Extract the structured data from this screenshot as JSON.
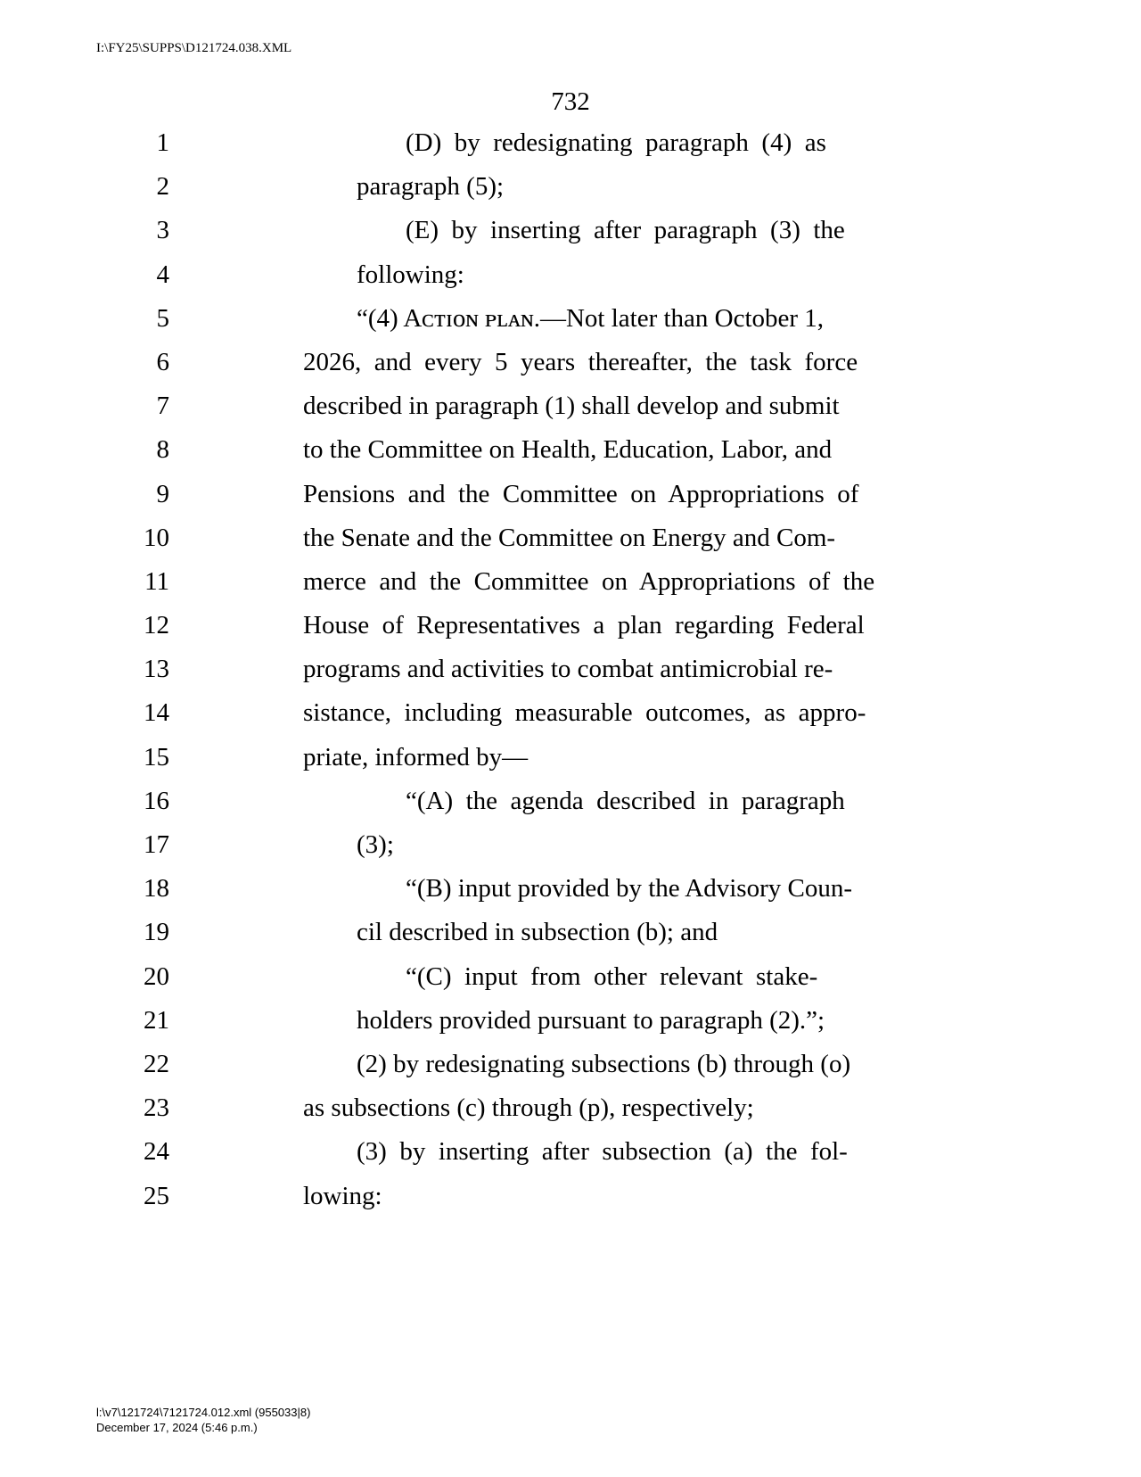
{
  "header_path": "I:\\FY25\\SUPPS\\D121724.038.XML",
  "page_number": "732",
  "lines": [
    {
      "n": "1",
      "indent": 230,
      "text": "(D)  by  redesignating  paragraph  (4)  as"
    },
    {
      "n": "2",
      "indent": 175,
      "text": "paragraph (5);"
    },
    {
      "n": "3",
      "indent": 230,
      "text": "(E)  by  inserting  after  paragraph  (3)  the"
    },
    {
      "n": "4",
      "indent": 175,
      "text": "following:"
    },
    {
      "n": "5",
      "indent": 175,
      "text": "“(4) Aᴄᴛɪᴏɴ ᴘʟᴀɴ.—Not later than October 1,"
    },
    {
      "n": "6",
      "indent": 115,
      "text": "2026,  and  every  5  years  thereafter,  the  task  force"
    },
    {
      "n": "7",
      "indent": 115,
      "text": "described in paragraph (1) shall develop and submit"
    },
    {
      "n": "8",
      "indent": 115,
      "text": "to the Committee on Health, Education, Labor, and"
    },
    {
      "n": "9",
      "indent": 115,
      "text": "Pensions  and  the  Committee  on  Appropriations  of"
    },
    {
      "n": "10",
      "indent": 115,
      "text": "the Senate and the Committee on Energy and Com-"
    },
    {
      "n": "11",
      "indent": 115,
      "text": "merce  and  the  Committee  on  Appropriations  of  the"
    },
    {
      "n": "12",
      "indent": 115,
      "text": "House  of  Representatives  a  plan  regarding  Federal"
    },
    {
      "n": "13",
      "indent": 115,
      "text": "programs and activities to combat antimicrobial re-"
    },
    {
      "n": "14",
      "indent": 115,
      "text": "sistance,  including  measurable  outcomes,  as  appro-"
    },
    {
      "n": "15",
      "indent": 115,
      "text": "priate, informed by—"
    },
    {
      "n": "16",
      "indent": 230,
      "text": "“(A)  the  agenda  described  in  paragraph"
    },
    {
      "n": "17",
      "indent": 175,
      "text": "(3);"
    },
    {
      "n": "18",
      "indent": 230,
      "text": "“(B) input provided by the Advisory Coun-"
    },
    {
      "n": "19",
      "indent": 175,
      "text": "cil described in subsection (b); and"
    },
    {
      "n": "20",
      "indent": 230,
      "text": "“(C)  input  from  other  relevant  stake-"
    },
    {
      "n": "21",
      "indent": 175,
      "text": "holders provided pursuant to paragraph (2).”;"
    },
    {
      "n": "22",
      "indent": 175,
      "text": "(2) by redesignating subsections (b) through (o)"
    },
    {
      "n": "23",
      "indent": 115,
      "text": "as subsections (c) through (p), respectively;"
    },
    {
      "n": "24",
      "indent": 175,
      "text": "(3)  by  inserting  after  subsection  (a)  the  fol-"
    },
    {
      "n": "25",
      "indent": 115,
      "text": "lowing:"
    }
  ],
  "footer_line1": "l:\\v7\\121724\\7121724.012.xml           (955033|8)",
  "footer_line2": "December 17, 2024 (5:46 p.m.)"
}
